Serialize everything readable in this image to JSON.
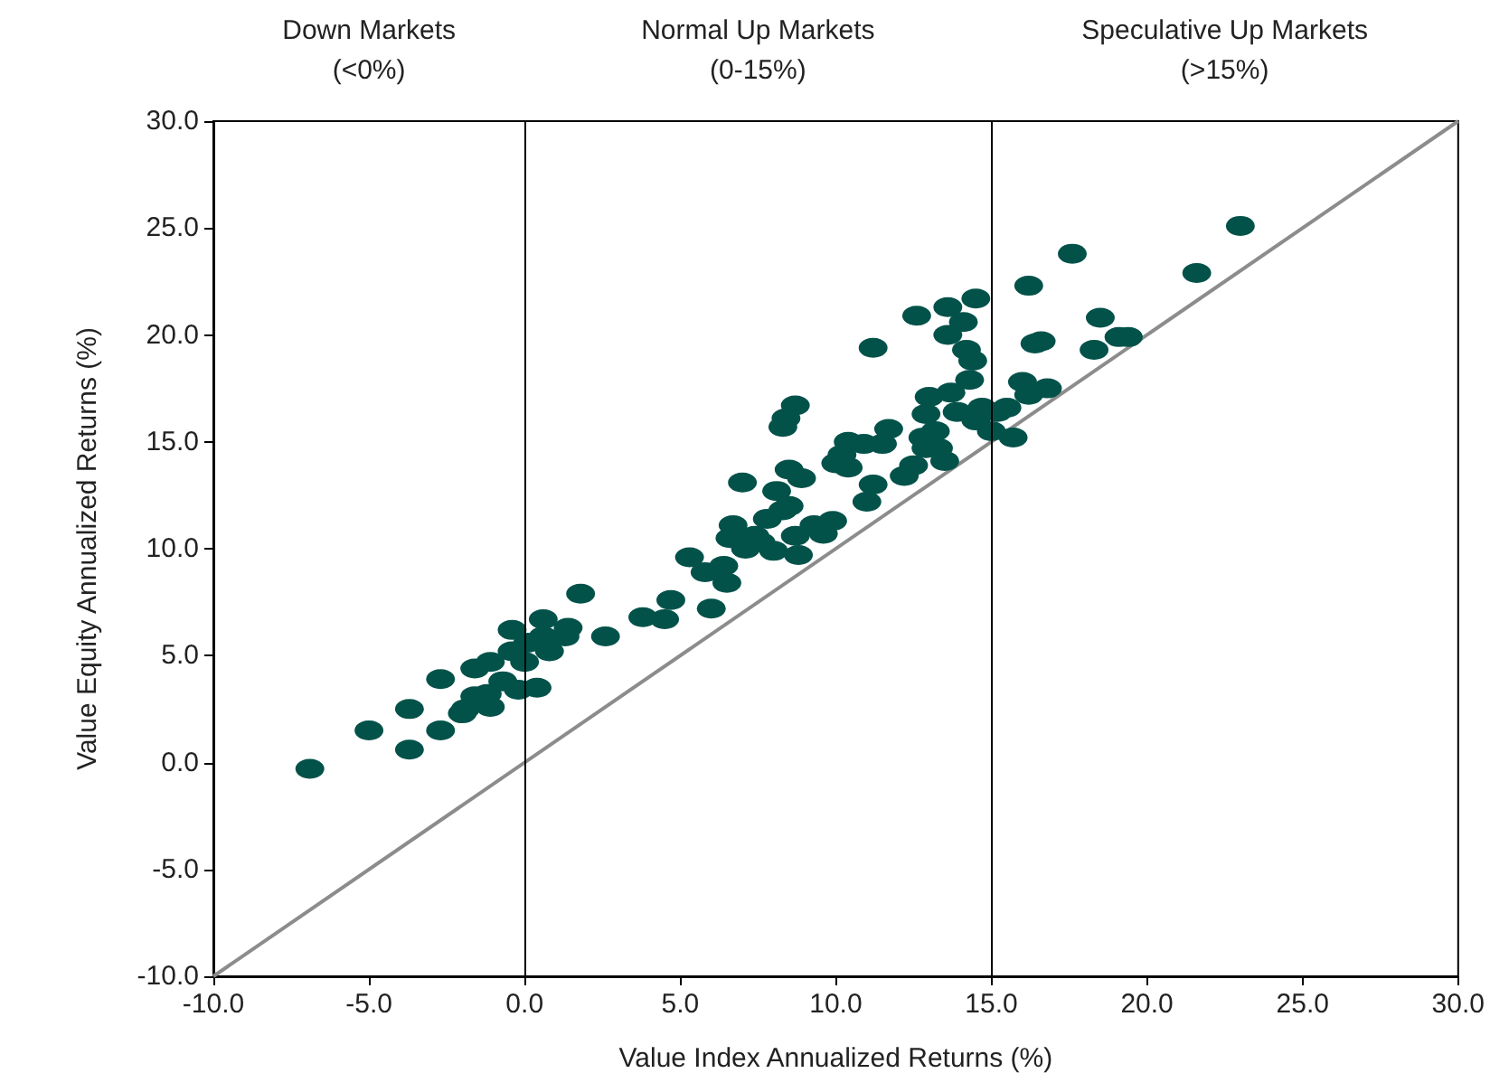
{
  "chart_data": {
    "type": "scatter",
    "xlabel": "Value Index Annualized Returns (%)",
    "ylabel": "Value Equity Annualized Returns (%)",
    "annotations": [
      "Down Markets\n(<0%)",
      "Normal Up Markets\n(0-15%)",
      "Speculative Up Markets\n(>15%)"
    ],
    "xlim": [
      -10,
      30
    ],
    "ylim": [
      -10,
      30
    ],
    "xticks": [
      {
        "value": -10,
        "label": "-10.0"
      },
      {
        "value": -5,
        "label": "-5.0"
      },
      {
        "value": 0,
        "label": "0.0"
      },
      {
        "value": 5,
        "label": "5.0"
      },
      {
        "value": 10,
        "label": "10.0"
      },
      {
        "value": 15,
        "label": "15.0"
      },
      {
        "value": 20,
        "label": "20.0"
      },
      {
        "value": 25,
        "label": "25.0"
      },
      {
        "value": 30,
        "label": "30.0"
      }
    ],
    "yticks": [
      {
        "value": -10,
        "label": "-10.0"
      },
      {
        "value": -5,
        "label": "-5.0"
      },
      {
        "value": 0,
        "label": "0.0"
      },
      {
        "value": 5,
        "label": "5.0"
      },
      {
        "value": 10,
        "label": "10.0"
      },
      {
        "value": 15,
        "label": "15.0"
      },
      {
        "value": 20,
        "label": "20.0"
      },
      {
        "value": 25,
        "label": "25.0"
      },
      {
        "value": 30,
        "label": "30.0"
      }
    ],
    "grid": false,
    "marker": "circle",
    "ref_lines": [
      {
        "axis": "x",
        "value": 0,
        "color": "#000000"
      },
      {
        "axis": "x",
        "value": 15,
        "color": "#000000"
      }
    ],
    "series": [
      {
        "type": "line",
        "color": "#8c8c8c",
        "marker": "none",
        "line_style": "solid",
        "x": [
          -10,
          30
        ],
        "values": [
          -10,
          30
        ]
      },
      {
        "color": "#03524a",
        "x": [
          -6.9,
          -5.0,
          -3.7,
          -3.7,
          -2.7,
          -2.7,
          -2.0,
          -1.6,
          -1.2,
          -1.1,
          -0.7,
          0.0,
          0.1,
          0.6,
          1.4,
          1.8,
          2.6,
          0.4,
          -0.2,
          -0.4,
          -1.1,
          -1.6,
          -1.9,
          -0.4,
          0.8,
          1.3,
          0.6,
          3.8,
          4.5,
          4.7,
          5.3,
          5.8,
          6.0,
          6.4,
          6.5,
          6.6,
          6.7,
          7.0,
          7.1,
          7.4,
          7.6,
          7.8,
          8.0,
          8.1,
          8.3,
          8.5,
          8.5,
          8.7,
          8.3,
          8.4,
          8.7,
          8.8,
          8.9,
          9.3,
          9.6,
          9.9,
          10.0,
          10.2,
          10.4,
          10.4,
          10.9,
          11.0,
          11.2,
          11.2,
          11.5,
          11.7,
          12.2,
          12.5,
          12.6,
          12.8,
          12.9,
          12.9,
          13.0,
          13.2,
          13.3,
          13.5,
          13.6,
          13.6,
          13.7,
          13.9,
          14.1,
          14.2,
          14.3,
          14.4,
          14.5,
          14.5,
          14.7,
          15.0,
          15.2,
          15.5,
          15.7,
          16.0,
          16.2,
          16.2,
          16.4,
          16.6,
          16.8,
          17.6,
          18.3,
          18.5,
          19.1,
          19.4,
          21.6,
          23.0
        ],
        "values": [
          -0.3,
          1.5,
          2.5,
          0.6,
          1.5,
          3.9,
          2.3,
          4.4,
          3.2,
          2.6,
          3.8,
          4.7,
          5.6,
          5.9,
          6.3,
          7.9,
          5.9,
          3.5,
          3.4,
          6.2,
          4.7,
          3.1,
          2.5,
          5.2,
          5.2,
          5.9,
          6.7,
          6.8,
          6.7,
          7.6,
          9.6,
          8.9,
          7.2,
          9.2,
          8.4,
          10.5,
          11.1,
          13.1,
          10.0,
          10.6,
          10.3,
          11.4,
          9.9,
          12.7,
          11.8,
          13.7,
          12.0,
          10.6,
          15.7,
          16.1,
          16.7,
          9.7,
          13.3,
          11.1,
          10.7,
          11.3,
          14.0,
          14.4,
          13.8,
          15.0,
          14.9,
          12.2,
          13.0,
          19.4,
          14.9,
          15.6,
          13.4,
          13.9,
          20.9,
          15.2,
          14.7,
          16.3,
          17.1,
          15.5,
          14.7,
          14.1,
          21.3,
          20.0,
          17.3,
          16.4,
          20.6,
          19.3,
          17.9,
          18.8,
          16.0,
          21.7,
          16.6,
          15.5,
          16.4,
          16.6,
          15.2,
          17.8,
          17.2,
          22.3,
          19.6,
          19.7,
          17.5,
          23.8,
          19.3,
          20.8,
          19.9,
          19.9,
          22.9,
          25.1
        ]
      }
    ]
  }
}
